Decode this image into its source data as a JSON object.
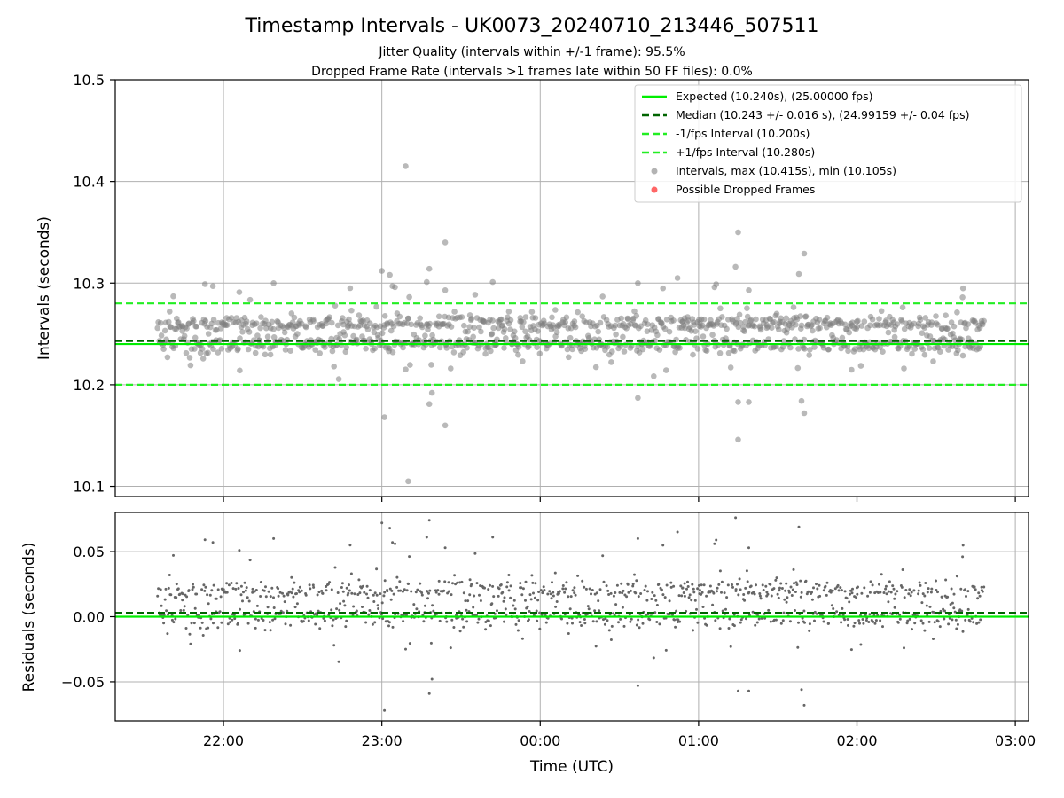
{
  "figure": {
    "title": "Timestamp Intervals - UK0073_20240710_213446_507511",
    "subtitle_1": "Jitter Quality (intervals within +/-1 frame): 95.5%",
    "subtitle_2": "Dropped Frame Rate (intervals >1 frames late within 50 FF files): 0.0%",
    "colors": {
      "expected": "#00ee00",
      "median": "#006400",
      "interval": "#22ee22",
      "points": "#808080",
      "dropped": "#ff5555",
      "grid": "#b0b0b0"
    }
  },
  "chart_data": [
    {
      "type": "scatter",
      "ylabel": "Intervals (seconds)",
      "ylim": [
        10.09,
        10.5
      ],
      "yticks": [
        10.1,
        10.2,
        10.3,
        10.4,
        10.5
      ],
      "ytick_labels": [
        "10.1",
        "10.2",
        "10.3",
        "10.4",
        "10.5"
      ],
      "grid": true,
      "legend_placement": "upper-right",
      "reference_lines": [
        {
          "label": "Expected (10.240s), (25.00000 fps)",
          "value": 10.24,
          "style": "solid",
          "color": "#00ee00"
        },
        {
          "label": "Median (10.243 +/- 0.016 s), (24.99159 +/- 0.04 fps)",
          "value": 10.243,
          "style": "dashed",
          "color": "#006400"
        },
        {
          "label": "-1/fps Interval (10.200s)",
          "value": 10.2,
          "style": "dashed",
          "color": "#22ee22"
        },
        {
          "label": "+1/fps Interval (10.280s)",
          "value": 10.28,
          "style": "dashed",
          "color": "#22ee22"
        }
      ],
      "series": [
        {
          "label": "Intervals, max (10.415s), min (10.105s)",
          "max": 10.415,
          "min": 10.105,
          "color": "#808080",
          "outliers": [
            {
              "t": "23:00",
              "y": 10.312
            },
            {
              "t": "23:01",
              "y": 10.168
            },
            {
              "t": "23:03",
              "y": 10.308
            },
            {
              "t": "23:04",
              "y": 10.297
            },
            {
              "t": "23:05",
              "y": 10.296
            },
            {
              "t": "23:09",
              "y": 10.415
            },
            {
              "t": "23:10",
              "y": 10.105
            },
            {
              "t": "23:18",
              "y": 10.314
            },
            {
              "t": "23:17",
              "y": 10.301
            },
            {
              "t": "23:18",
              "y": 10.181
            },
            {
              "t": "23:19",
              "y": 10.192
            },
            {
              "t": "23:24",
              "y": 10.293
            },
            {
              "t": "23:24",
              "y": 10.34
            },
            {
              "t": "23:24",
              "y": 10.16
            },
            {
              "t": "23:42",
              "y": 10.301
            },
            {
              "t": "00:37",
              "y": 10.187
            },
            {
              "t": "00:37",
              "y": 10.3
            },
            {
              "t": "00:52",
              "y": 10.305
            },
            {
              "t": "01:06",
              "y": 10.296
            },
            {
              "t": "01:14",
              "y": 10.316
            },
            {
              "t": "01:15",
              "y": 10.35
            },
            {
              "t": "01:15",
              "y": 10.183
            },
            {
              "t": "01:15",
              "y": 10.146
            },
            {
              "t": "01:19",
              "y": 10.183
            },
            {
              "t": "01:19",
              "y": 10.293
            },
            {
              "t": "01:38",
              "y": 10.309
            },
            {
              "t": "01:39",
              "y": 10.184
            },
            {
              "t": "01:40",
              "y": 10.329
            },
            {
              "t": "01:40",
              "y": 10.172
            },
            {
              "t": "21:53",
              "y": 10.299
            },
            {
              "t": "21:56",
              "y": 10.297
            },
            {
              "t": "22:06",
              "y": 10.291
            },
            {
              "t": "22:19",
              "y": 10.3
            },
            {
              "t": "22:48",
              "y": 10.295
            },
            {
              "t": "02:40",
              "y": 10.286
            }
          ]
        },
        {
          "label": "Possible Dropped Frames",
          "color": "#ff5555",
          "points": []
        }
      ]
    },
    {
      "type": "scatter",
      "xlabel": "Time (UTC)",
      "ylabel": "Residuals (seconds)",
      "ylim": [
        -0.08,
        0.08
      ],
      "yticks": [
        -0.05,
        0.0,
        0.05
      ],
      "ytick_labels": [
        "−0.05",
        "0.00",
        "0.05"
      ],
      "xlim": [
        "21:19",
        "03:05"
      ],
      "xticks": [
        "22:00",
        "23:00",
        "00:00",
        "01:00",
        "02:00",
        "03:00"
      ],
      "grid": true,
      "reference_lines": [
        {
          "value": 0.0,
          "style": "solid",
          "color": "#00ee00"
        },
        {
          "value": 0.003,
          "style": "dashed",
          "color": "#006400"
        }
      ],
      "data_range": {
        "start": "21:35",
        "end": "02:48"
      }
    }
  ]
}
